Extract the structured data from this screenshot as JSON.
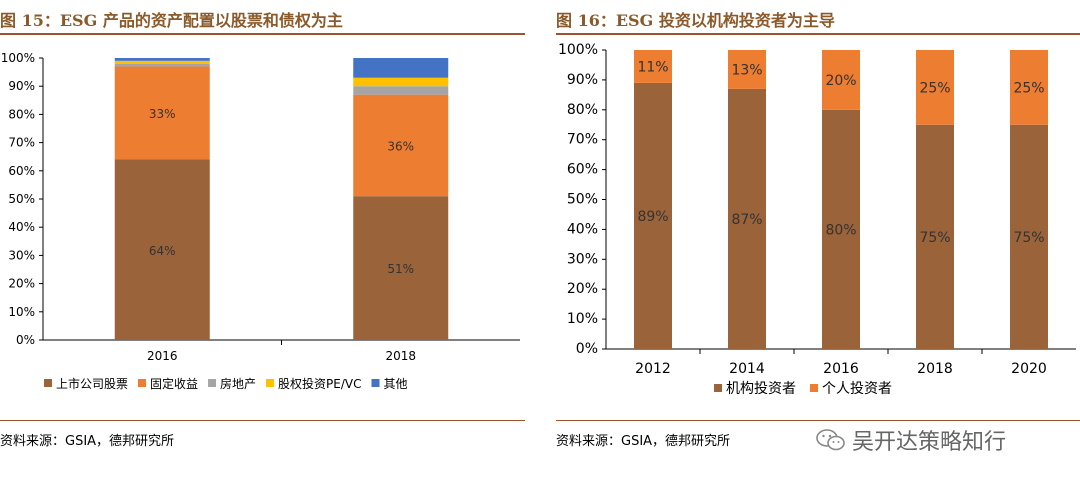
{
  "left_panel": {
    "title": "图 15：ESG 产品的资产配置以股票和债权为主",
    "source": "资料来源：GSIA，德邦研究所"
  },
  "right_panel": {
    "title": "图 16：ESG 投资以机构投资者为主导",
    "source": "资料来源：GSIA，德邦研究所"
  },
  "watermark": {
    "text": "吴开达策略知行",
    "icon": "wechat-icon"
  },
  "chart_data": [
    {
      "type": "bar",
      "stacked": true,
      "categories": [
        "2016",
        "2018"
      ],
      "yticks": [
        "0%",
        "10%",
        "20%",
        "30%",
        "40%",
        "50%",
        "60%",
        "70%",
        "80%",
        "90%",
        "100%"
      ],
      "ylim": [
        0,
        100
      ],
      "legend_position": "bottom",
      "series": [
        {
          "name": "上市公司股票",
          "color": "#9a6339",
          "values": [
            64,
            51
          ],
          "labels": [
            "64%",
            "51%"
          ]
        },
        {
          "name": "固定收益",
          "color": "#ed7d31",
          "values": [
            33,
            36
          ],
          "labels": [
            "33%",
            "36%"
          ]
        },
        {
          "name": "房地产",
          "color": "#a5a5a5",
          "values": [
            1,
            3
          ],
          "labels": [
            "",
            ""
          ]
        },
        {
          "name": "股权投资PE/VC",
          "color": "#ffc000",
          "values": [
            1,
            3
          ],
          "labels": [
            "",
            ""
          ]
        },
        {
          "name": "其他",
          "color": "#4472c4",
          "values": [
            1,
            7
          ],
          "labels": [
            "",
            ""
          ]
        }
      ]
    },
    {
      "type": "bar",
      "stacked": true,
      "categories": [
        "2012",
        "2014",
        "2016",
        "2018",
        "2020"
      ],
      "yticks": [
        "0%",
        "10%",
        "20%",
        "30%",
        "40%",
        "50%",
        "60%",
        "70%",
        "80%",
        "90%",
        "100%"
      ],
      "ylim": [
        0,
        100
      ],
      "legend_position": "bottom",
      "series": [
        {
          "name": "机构投资者",
          "color": "#9a6339",
          "values": [
            89,
            87,
            80,
            75,
            75
          ],
          "labels": [
            "89%",
            "87%",
            "80%",
            "75%",
            "75%"
          ]
        },
        {
          "name": "个人投资者",
          "color": "#ed7d31",
          "values": [
            11,
            13,
            20,
            25,
            25
          ],
          "labels": [
            "11%",
            "13%",
            "20%",
            "25%",
            "25%"
          ]
        }
      ]
    }
  ]
}
